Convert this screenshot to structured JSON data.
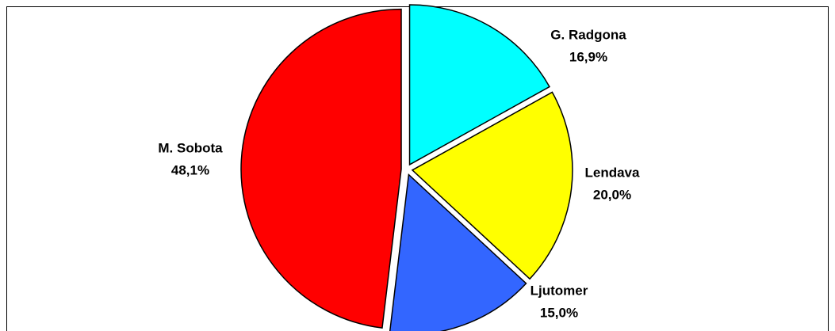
{
  "chart_data": {
    "type": "pie",
    "categories": [
      "G. Radgona",
      "Lendava",
      "Ljutomer",
      "M. Sobota"
    ],
    "values": [
      16.9,
      20.0,
      15.0,
      48.1
    ],
    "value_labels": [
      "16,9%",
      "20,0%",
      "15,0%",
      "48,1%"
    ],
    "colors": [
      "#00ffff",
      "#ffff00",
      "#3366ff",
      "#ff0000"
    ]
  }
}
